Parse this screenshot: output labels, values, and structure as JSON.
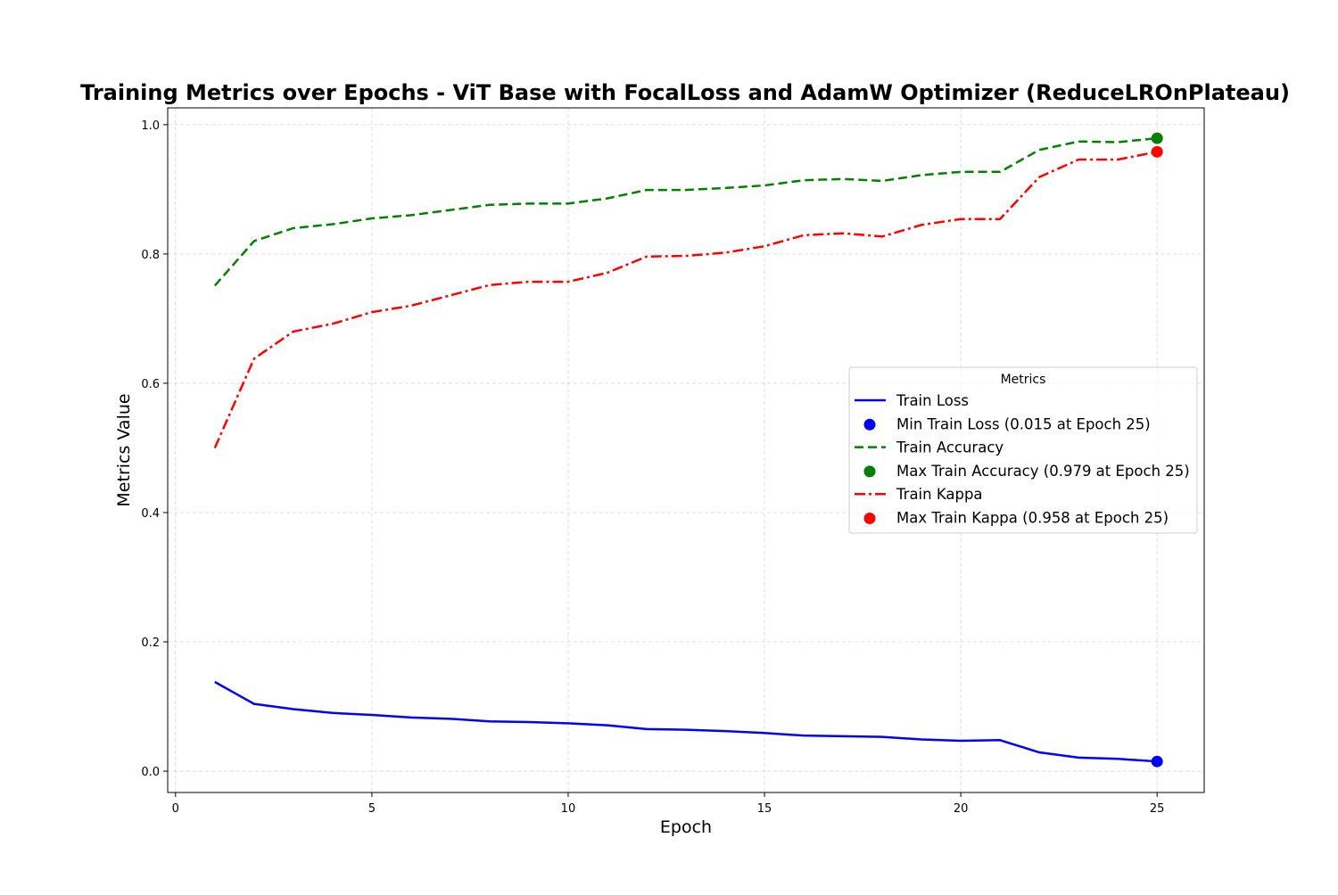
{
  "chart_data": {
    "type": "line",
    "title": "Training Metrics over Epochs - ViT Base with FocalLoss and AdamW Optimizer (ReduceLROnPlateau)",
    "xlabel": "Epoch",
    "ylabel": "Metrics Value",
    "xlim": [
      -0.2,
      26.2
    ],
    "ylim": [
      -0.033,
      1.026
    ],
    "xticks": [
      0,
      5,
      10,
      15,
      20,
      25
    ],
    "yticks": [
      0.0,
      0.2,
      0.4,
      0.6,
      0.8,
      1.0
    ],
    "xtick_labels": [
      "0",
      "5",
      "10",
      "15",
      "20",
      "25"
    ],
    "ytick_labels": [
      "0.0",
      "0.2",
      "0.4",
      "0.6",
      "0.8",
      "1.0"
    ],
    "grid": true,
    "x": [
      1,
      2,
      3,
      4,
      5,
      6,
      7,
      8,
      9,
      10,
      11,
      12,
      13,
      14,
      15,
      16,
      17,
      18,
      19,
      20,
      21,
      22,
      23,
      24,
      25
    ],
    "series": [
      {
        "name": "Train Loss",
        "color": "#0000ff",
        "style": "solid",
        "values": [
          0.138,
          0.104,
          0.096,
          0.09,
          0.087,
          0.083,
          0.081,
          0.077,
          0.076,
          0.074,
          0.071,
          0.065,
          0.064,
          0.062,
          0.059,
          0.055,
          0.054,
          0.053,
          0.049,
          0.047,
          0.048,
          0.029,
          0.021,
          0.019,
          0.015
        ]
      },
      {
        "name": "Train Accuracy",
        "color": "#008000",
        "style": "dashed",
        "values": [
          0.751,
          0.82,
          0.84,
          0.846,
          0.855,
          0.86,
          0.868,
          0.876,
          0.878,
          0.878,
          0.886,
          0.899,
          0.899,
          0.902,
          0.906,
          0.914,
          0.916,
          0.913,
          0.922,
          0.927,
          0.927,
          0.961,
          0.974,
          0.973,
          0.979
        ]
      },
      {
        "name": "Train Kappa",
        "color": "#ff0000",
        "style": "dashdot",
        "values": [
          0.5,
          0.638,
          0.68,
          0.692,
          0.71,
          0.72,
          0.736,
          0.752,
          0.757,
          0.757,
          0.771,
          0.796,
          0.797,
          0.802,
          0.812,
          0.829,
          0.832,
          0.827,
          0.845,
          0.854,
          0.854,
          0.919,
          0.946,
          0.946,
          0.958
        ]
      }
    ],
    "markers": [
      {
        "name": "Min Train Loss (0.015 at Epoch 25)",
        "x": 25,
        "y": 0.015,
        "color": "#0000ff"
      },
      {
        "name": "Max Train Accuracy (0.979 at Epoch 25)",
        "x": 25,
        "y": 0.979,
        "color": "#008000"
      },
      {
        "name": "Max Train Kappa (0.958 at Epoch 25)",
        "x": 25,
        "y": 0.958,
        "color": "#ff0000"
      }
    ],
    "legend": {
      "title": "Metrics",
      "placement": "center-right",
      "entries": [
        {
          "label": "Train Loss",
          "kind": "line",
          "color": "#0000ff",
          "style": "solid"
        },
        {
          "label": "Min Train Loss (0.015 at Epoch 25)",
          "kind": "marker",
          "color": "#0000ff"
        },
        {
          "label": "Train Accuracy",
          "kind": "line",
          "color": "#008000",
          "style": "dashed"
        },
        {
          "label": "Max Train Accuracy (0.979 at Epoch 25)",
          "kind": "marker",
          "color": "#008000"
        },
        {
          "label": "Train Kappa",
          "kind": "line",
          "color": "#ff0000",
          "style": "dashdot"
        },
        {
          "label": "Max Train Kappa (0.958 at Epoch 25)",
          "kind": "marker",
          "color": "#ff0000"
        }
      ]
    }
  }
}
